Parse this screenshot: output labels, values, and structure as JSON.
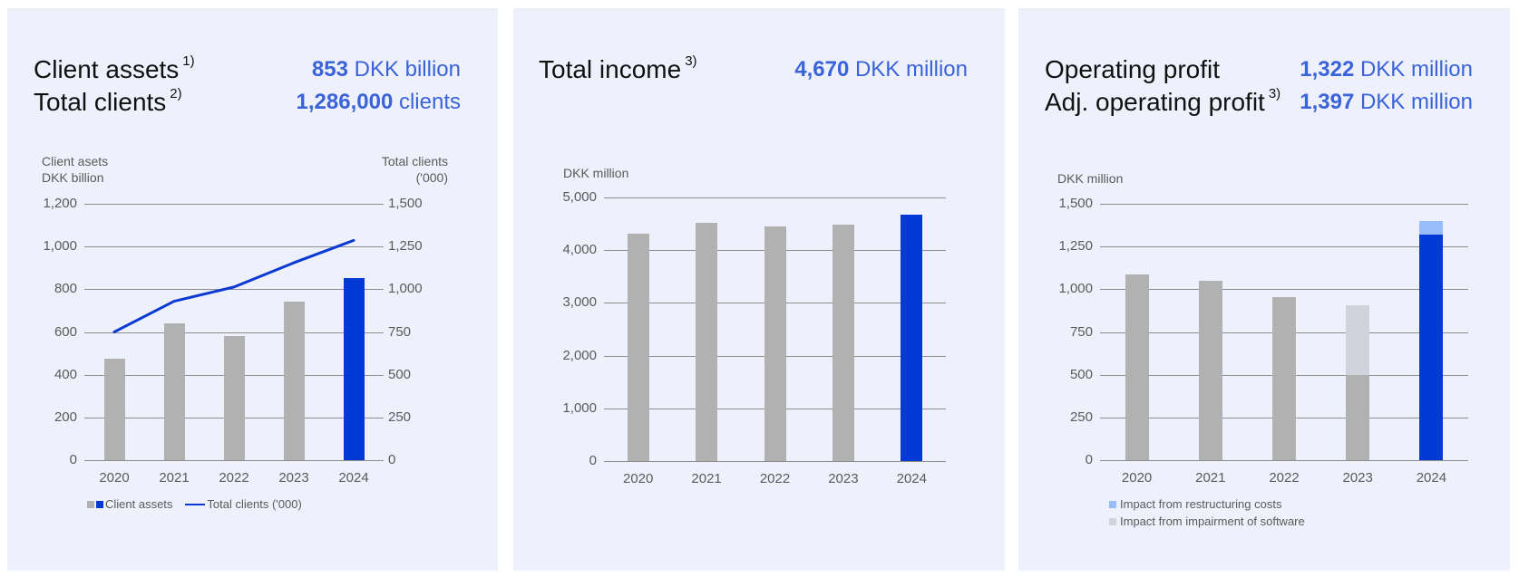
{
  "colors": {
    "background": "#eef1fb",
    "highlight_bar": "#0039d6",
    "bar": "#b1b1b1",
    "line": "#0a39d4",
    "restructuring": "#98bcfc",
    "impairment": "#d0d3db",
    "kpi_text": "#3a63d9"
  },
  "panels": [
    {
      "kpis": [
        {
          "label": "Client assets",
          "footnote": "1)",
          "value": "853",
          "unit": "DKK billion"
        },
        {
          "label": "Total clients",
          "footnote": "2)",
          "value": "1,286,000",
          "unit": " clients"
        }
      ],
      "left_axis_title_1": "Client asets",
      "left_axis_title_2": "DKK billion",
      "right_axis_title_1": "Total clients",
      "right_axis_title_2": "('000)",
      "legend": {
        "bar": "Client assets",
        "line": "Total clients ('000)"
      }
    },
    {
      "kpis": [
        {
          "label": "Total income",
          "footnote": "3)",
          "value": "4,670",
          "unit": "DKK million"
        }
      ],
      "axis_title": "DKK million"
    },
    {
      "kpis": [
        {
          "label": "Operating profit",
          "footnote": "",
          "value": "1,322",
          "unit": "DKK million"
        },
        {
          "label": "Adj. operating profit",
          "footnote": "3)",
          "value": "1,397",
          "unit": "DKK million"
        }
      ],
      "axis_title": "DKK million",
      "legend": [
        "Impact from restructuring costs",
        "Impact from impairment of software"
      ]
    }
  ],
  "chart_data": [
    {
      "type": "bar",
      "title": "Client assets / Total clients",
      "categories": [
        "2020",
        "2021",
        "2022",
        "2023",
        "2024"
      ],
      "series": [
        {
          "name": "Client assets",
          "type": "bar",
          "axis": "left",
          "values": [
            475,
            640,
            582,
            743,
            853
          ]
        },
        {
          "name": "Total clients ('000)",
          "type": "line",
          "axis": "right",
          "values": [
            750,
            930,
            1013,
            1155,
            1286
          ]
        }
      ],
      "ylabel": "Client asets DKK billion",
      "ylabel_right": "Total clients ('000)",
      "ylim": [
        0,
        1200
      ],
      "ylim_right": [
        0,
        1500
      ],
      "yticks": [
        "0",
        "200",
        "400",
        "600",
        "800",
        "1,000",
        "1,200"
      ],
      "yticks_right": [
        "0",
        "250",
        "500",
        "750",
        "1,000",
        "1,250",
        "1,500"
      ],
      "grid": true,
      "legend_position": "bottom"
    },
    {
      "type": "bar",
      "title": "Total income",
      "categories": [
        "2020",
        "2021",
        "2022",
        "2023",
        "2024"
      ],
      "values": [
        4310,
        4520,
        4450,
        4480,
        4670
      ],
      "ylabel": "DKK million",
      "ylim": [
        0,
        5000
      ],
      "yticks": [
        "0",
        "1,000",
        "2,000",
        "3,000",
        "4,000",
        "5,000"
      ],
      "grid": true
    },
    {
      "type": "bar",
      "title": "Operating profit",
      "stacked": true,
      "categories": [
        "2020",
        "2021",
        "2022",
        "2023",
        "2024"
      ],
      "series": [
        {
          "name": "Operating profit",
          "values": [
            1085,
            1048,
            952,
            500,
            1322
          ]
        },
        {
          "name": "Impact from impairment of software",
          "values": [
            0,
            0,
            0,
            405,
            0
          ]
        },
        {
          "name": "Impact from restructuring costs",
          "values": [
            0,
            0,
            0,
            0,
            75
          ]
        }
      ],
      "ylabel": "DKK million",
      "ylim": [
        0,
        1500
      ],
      "yticks": [
        "0",
        "250",
        "500",
        "750",
        "1,000",
        "1,250",
        "1,500"
      ],
      "grid": true,
      "legend_position": "bottom"
    }
  ]
}
